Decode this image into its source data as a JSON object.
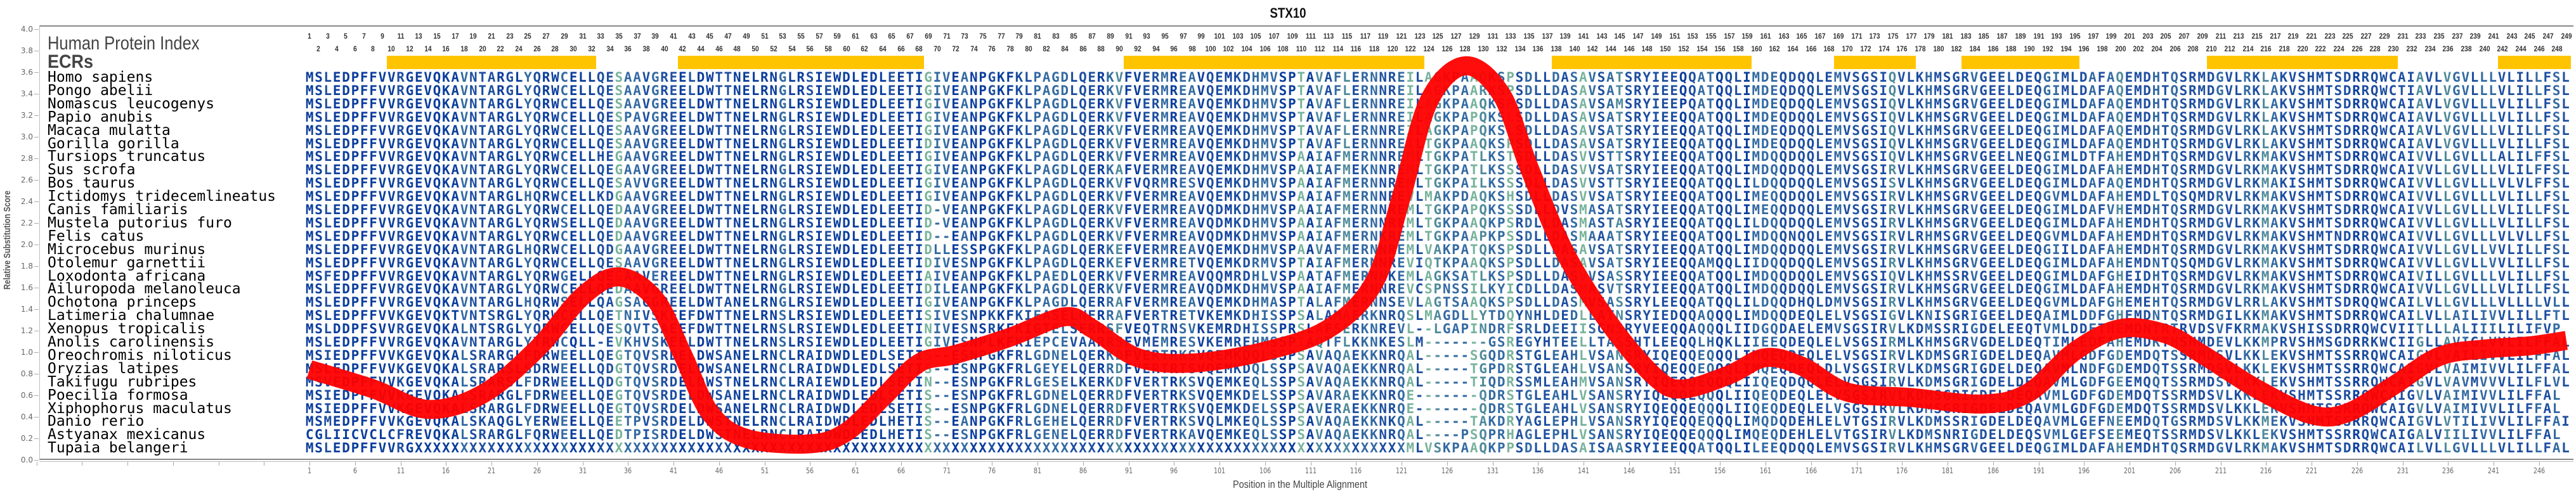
{
  "chart_data": {
    "type": "line",
    "title": "STX10",
    "xlabel": "Position in the Multiple Alignment",
    "ylabel": "Relative Substitution Score",
    "ylim": [
      0,
      4.0
    ],
    "xlim": [
      1,
      249
    ],
    "y_ticks": [
      "0.0",
      "0.2",
      "0.4",
      "0.6",
      "0.8",
      "1.0",
      "1.2",
      "1.4",
      "1.6",
      "1.8",
      "2.0",
      "2.2",
      "2.4",
      "2.6",
      "2.8",
      "3.0",
      "3.2",
      "3.4",
      "3.6",
      "3.8",
      "4.0"
    ],
    "x_ticks": [
      "1",
      "6",
      "11",
      "16",
      "21",
      "26",
      "31",
      "36",
      "41",
      "46",
      "51",
      "56",
      "61",
      "66",
      "71",
      "76",
      "81",
      "86",
      "91",
      "96",
      "101",
      "106",
      "111",
      "116",
      "121",
      "126",
      "131",
      "136",
      "141",
      "146",
      "151",
      "156",
      "161",
      "166",
      "171",
      "176",
      "181",
      "186",
      "191",
      "196",
      "201",
      "206",
      "211",
      "216",
      "221",
      "226",
      "231",
      "236",
      "241",
      "246"
    ],
    "num_positions": 249,
    "series": [
      {
        "name": "Relative Substitution Score",
        "color": "#ff0000",
        "points": [
          [
            1,
            0.84
          ],
          [
            8,
            0.66
          ],
          [
            14,
            0.47
          ],
          [
            20,
            0.61
          ],
          [
            26,
            1.03
          ],
          [
            31,
            1.52
          ],
          [
            35,
            1.7
          ],
          [
            39,
            1.49
          ],
          [
            42,
            0.98
          ],
          [
            45,
            0.44
          ],
          [
            49,
            0.2
          ],
          [
            56,
            0.15
          ],
          [
            60,
            0.26
          ],
          [
            64,
            0.58
          ],
          [
            68,
            0.9
          ],
          [
            72,
            0.98
          ],
          [
            78,
            1.14
          ],
          [
            84,
            1.33
          ],
          [
            87,
            1.22
          ],
          [
            92,
            0.95
          ],
          [
            98,
            0.9
          ],
          [
            106,
            1.01
          ],
          [
            113,
            1.22
          ],
          [
            118,
            1.65
          ],
          [
            121,
            2.45
          ],
          [
            124,
            3.33
          ],
          [
            128,
            3.66
          ],
          [
            132,
            3.39
          ],
          [
            135,
            2.72
          ],
          [
            139,
            1.92
          ],
          [
            144,
            1.25
          ],
          [
            149,
            0.76
          ],
          [
            152,
            0.66
          ],
          [
            157,
            0.79
          ],
          [
            161,
            0.95
          ],
          [
            165,
            0.87
          ],
          [
            170,
            0.63
          ],
          [
            177,
            0.58
          ],
          [
            185,
            0.52
          ],
          [
            190,
            0.63
          ],
          [
            195,
            1.01
          ],
          [
            200,
            1.22
          ],
          [
            205,
            1.17
          ],
          [
            209,
            0.98
          ],
          [
            215,
            0.66
          ],
          [
            221,
            0.42
          ],
          [
            225,
            0.44
          ],
          [
            230,
            0.69
          ],
          [
            235,
            0.96
          ],
          [
            240,
            1.03
          ],
          [
            245,
            1.06
          ],
          [
            249,
            1.11
          ]
        ]
      }
    ],
    "ecr_ranges": [
      [
        10,
        32
      ],
      [
        42,
        68
      ],
      [
        91,
        123
      ],
      [
        138,
        159
      ],
      [
        169,
        177
      ],
      [
        183,
        195
      ],
      [
        210,
        230
      ],
      [
        242,
        249
      ]
    ],
    "ecr_color": "#ffc400"
  },
  "panel": {
    "index_label": "Human Protein Index",
    "ecr_label": "ECRs"
  },
  "alignment": {
    "rows": [
      {
        "species": "Homo sapiens",
        "sequence": "MSLEDPFFVVRGEVQKAVNTARGLYQRWCELLQESAAVGREELDWTTNELRNGLRSIEWDLEDLEETIGIVEANPGKFKLPAGDLQERKVFVERMREAVQEMKDHMVSPTAVAFLERNNREILAGKPAAQKSPSDLLDASAVSATSRYIEEQQATQQLIMDEQDQQLEMVSGSIQVLKHMSGRVGEELDEQGIMLDAFAQEMDHTQSRMDGVLRKLAKVSHMTSDRRQWCAIAVLVGVLLLVLILLFSL"
      },
      {
        "species": "Pongo abelii",
        "sequence": "MSLEDPFFVVRGEVQKAVNTARGLYQRWCELLQESAAVGREELDWTTNELRNGLRSIEWDLEDLEETIGIVEANPGKFKLPAGDLQERKVFVERMREAVQEMKDHMVSPTAVAFLERNNREILAGKPAARKSPSDLLDASAVSATSRYIEEQQATQQLIMDEQDQQLEMVSGSIQVLKHMSGRVGEELDEQGIMLDAFAQEMDHTQSRMDGVLRKLAKVSHMTSDRRQWCTIAVLVGVLLLVLILLFSL"
      },
      {
        "species": "Nomascus leucogenys",
        "sequence": "MSLEDPFFVVRGEVQKAVNTARGLYQRWCELLQESAAVGREELDWTTNELRNGLRSIEWDLEDLEETIGIVEANPGKFKLPAGDLQERKVFVERMREAVQEMKDHMVSPTAVAFLERNNREILAGKPAAQKSPSDLLDASAVSAMSRYIEEPQATQQLIMDEQDQQLEMVSGSIQVLKHMSGRVGEELDEQGIMLDAFAQEMDHTQSRMDGVLRKLAKVSHMTSDRRQWCAIAVLVGVLLLVLILLFSL"
      },
      {
        "species": "Papio anubis",
        "sequence": "MSLEDPFFVVRGEVQKAVNTARGLYQRWCELLQESPAVGREELDWTTNELRNGLRSIEWDLEDLEETIGIVEANPGKFKLPAGDLQERKVFVERMREAVQEMKDHMVSPTAVAFLERNNREILAGKPAPQKSLSDLLDASAVSATSRYIEEQQATQQLIMDEQDQQLEMVSGSIQVLKHMSGRVGEELDEQGIMLDAFAQEMDHTQSRMDGVLRKLAKVSHMTSDRRQWCAIAVLVGVLLLVLILLFSL"
      },
      {
        "species": "Macaca mulatta",
        "sequence": "MSLEDPFFVVRGEVQKAVNTARGLYQRWCELLQESAAVGREELDWTTNELRNGLRSIEWDLEDLEETIGIVEANPGKFKLPAGDLQERKVFVERMREAVQEMKDHMVSPTAVAFLERNNREILAGKPAPQKSLSDLLDASAVSATSRYIEEQQATQQLIMDEQDQQLEMVSGSIQVLKHMSGRVGEELDEQGIMLDAFAQEMDHTQSRMDGVLRKLAKVSHMTSDRRQWCAIAVLVGVLLLVLILLFSL"
      },
      {
        "species": "Gorilla gorilla",
        "sequence": "MSLEDPFFVVRGEVQKAVNTARGLYQRWCELLQESAAVGREELDWTTNELRNGLRSIEWDLEDLEETIDIVEANPGKFKLPAGDLQERKVFVERMREAVQEMKDHMVSPTAVAFLERNNREILTGKPAAQKSPSDLLDASAVSATSRYIEEQQATQQLIMDEQDQQLEMVSGSIQVLKHMSGRVGEELDEQGIMLDAFAQEMDHTQSRMDGVLRKLAKVSHMTSDRRQWCAIAVLVGVLLLVLILLFSL"
      },
      {
        "species": "Tursiops truncatus",
        "sequence": "MSLEDPFFVVRGEVQKAVNTARGLYQRWCELLHEGAAVGREELDWTTNELRNGLRSIEWDLEDLEETIGIVEANPGKFKLPAGDLQERKVFVERMREAVQEMKDHMVSPAAIAFMERNNREMLTGKPATLKSTSDLLDASVVSTTSRYIEEQQATQQLIMDQQDQQLEMVSGSIQVLKHMSGRVGEELNEQGIMLDTFAHEMDHTQSRMDGVLRKMAKVSHMTSDRRQWCAIVVLLGVLLLALILFFSL"
      },
      {
        "species": "Sus scrofa",
        "sequence": "MSLEDPFFVVRGEVQKAVNTARGLYQRWCELLQEGAAVGREELDWTTNELRNGLRSIEWDLEDLEETIGIVEANPGKFKLPAGDLQERKAFVERMREAVQEMKDHMVSPAAIAFMEKNNREMLTGKPATLKSSSDLLDASVVSATSRYIEEQQATQQLIMDQQDQQLEMVSGSIRVLKHMSGRVGEELDEQGIMLDAFAHEMDHTQSRMDGVLRKMAKVSHMTSDRRQWCAIVVLLGVLLLVLILFFSL"
      },
      {
        "species": "Bos taurus",
        "sequence": "MSLEDPFFVVRGEVQKAVNTARGLYQRWCELLQESAVVGREELDWTTNELRNGLRSIEWDLEDLEETIGIVEANPGKFKLPAGDLQERKVFVQRMRESVQEMKDHMVSPAAIAFMERNNREMLTGKPAILKSSSDLLDASVVSTTSRYIEEQQATQQLILDQQDQQLEMVSGSISVLKHMSGRVGEELDEQGIMLDAFAQEMDHTQSRMDGVLRKMAKISHMTSDRRQWCAIVVLLGVLLLVLVLFFSL"
      },
      {
        "species": "Ictidomys tridecemlineatus",
        "sequence": "MSLEDPFFVVRGEVQKAVNTARGLHQRWCELLKDGAAVGREELDWTTNELRNGLRSIEWDLEDLEETIGIVEANPGKFKLPAGDLQERKVFVERMREAVQEMKDHMVSPAAIAFMERNNREVLMAKPDAQKSHSDLLDASVVSATSRYIEEQQATQQLIMEQQDQQLEMVSGSIRVLKHMSGRVGEELDEQGVMLDAFAHEMDLTQSQMDRVLRKMAKVSHMTSDRRQWCAIVVLLGVLLLVLILLFSL"
      },
      {
        "species": "Canis familiaris",
        "sequence": "MSLEDPFFVVRGEVQKAVNTARGLYQRWCELLQEDAAVGREELDWTTNELRNGLRSIEWDLEDLEETID-VEANPGKFKLPAGDLQERKVFVERMREAVQDMKDHMVSPAAIAFMERNNREMLTGKPAPQKSSSDLLDVSMASATSRYIEEQQATQQLIMEQQDQQLEMVSGSIRVLKHMSGRVGEELDEQGIMLDAFVHEMDHTQSRMDGVLRKMAKVSHMTSDRRQWCAIVVLLGVLLLVLILLFSL"
      },
      {
        "species": "Mustela putorius furo",
        "sequence": "MSLEDPFFVVRGEVQKAVNTARGLYQRWSELLQEDAAVGREELDWTTNELRNGLRSIEWDLEDLEETID-VEANPGKFKLPAGDLQERKVFVERMREAVQDMKDHMVSPAAIAFMERNNREMLTGKPAAQKPSRDLLDASMASTASRYIEEQQATQQLILDQQDQQLEMVSGSIRVLKHMSGRVGEELDEQGIMLDAFAHEMDHTQSRMDGVLRKMAKVSHMTSDRRQWCAIVVLLGVLLLVLILLFSL"
      },
      {
        "species": "Felis catus",
        "sequence": "MSLEDPFFVVRGEVQKAVNTARGLYQRWCELLQEDAAVGREELDWTTNELRNGLRSIEWDLEDLEETID--EANPGKFKLPAGDLQERKVFVERMREAVQDMKDHMVSPAAIAFMERNKREMLTGKPAAPKPSSDLLDASMAAATSRYIEEQQATQQLIMDQQNQQLEMVSGSIRVLRHMSGRVGEELDEQGVMLDAFAHEMDHTQSRMDGVLRKMAKVSHMTNDRRQWCAIVVLLGVLLLVLVLLFSL"
      },
      {
        "species": "Microcebus murinus",
        "sequence": "MSLEDPFFVVRGEVQKAVNTARGLHQRWCELLQDGAAVGREELDWTTNELRNGLRSIEWDLEDLEETIDLLESSPGKFKLPAGDLQERKEFVERMREAVQEMKDHMVSPAAVAFMERNNREMLVAKPATQKSPSDLLDASAVSATSRYIEEQQATQQLIMDQQDQQLEMVSGSIRVLKHMSGRVGEELDEQGIILDAFAHEMDHTQSRMDGVLRKMAKVSHMTSDRRQWCAIVVLLGVLLVVLILLFSL"
      },
      {
        "species": "Otolemur garnettii",
        "sequence": "MSLEDPFFVVRGEVQKAVNTARGLYQRWCELLQESAAVGREELDWTTNELRNGLRSIEWDLEDLEETIDIVESNPGKFKLPAGDLQERKEFVERMRETVQEMKDRMVSPTAIAFMERNNREVIQTKPAAQKSPSDLLDASAVSATSRYIEEQQAMQQLIIDQQDQQLEMVSGSIRVLKHMSGRVGEELDEQGIMLDAFAHEMDNTQSQMDGVLRKMAKVSHMTSDRRQWCAIVVLLGVLLVVLILLFSL"
      },
      {
        "species": "Loxodonta africana",
        "sequence": "MSFEDPFFVVRGEVQKAVNTARGLYQRWGELLQEGAAVEREELDWTTNELRNGLRSIEWDLEDLEETIAIVEANPGKFKLPAEDLQERKVFVERMREAVQQMRDHLVSPAATAFMERNNKEMLAGKSATLKSPSDLLDASVVSASSRYIEEQQATQQLIMDQQDQQLEMVSGSIQVLKHMSSRVGEELDEQGIMLDAFGHEIDHTQSRMDGVLRKMAKVSHMTSDRRQWCAIVILLGVLLLVLILLFSL"
      },
      {
        "species": "Ailuropoda melanoleuca",
        "sequence": "MSLEDPFFVVRGEVQKAVNTARGLYQRWCELLQEDAAVGREELDWTTNELRNGLRSIEWDLEDLEETIDILEANPGKFKLPAGDLQERKVFVERMREAVQDMKDHMVSPAAIAFMERNNREVCSPNSSILKYICDLLDASMASVTSRYIEEQQATQQLIMDQQDQQLEMVSGSIRVLKHMSGRVGEELDEQGIMLDAFAHEMDHTQSRMDGVLRKMAKVSHMTSDRRQWCAIVVLLGVLLLVLILLFSL"
      },
      {
        "species": "Ochotona princeps",
        "sequence": "MSLEDPFFVVRGEVQKAVNTARGLHQRWSELLQAGSAGGREELDWTANELRNGLRSIEWDLEDLEETIGIVEANPGKFKLPAGDLQERRAFVERMREAVQEMKDHMASPTALAFMERNNSEVLAGTSAAQKSPSDLLDASMVSASSRYLEEQQATQQLILDQQDHQLDMVSGSIRVLKHMSGRVGEELDEQGVMLDAFGHEMEHTQSRMDGVLRRLAKVSHMTSDRQQWCAILVLLGVLLLVLLLLVLL"
      },
      {
        "species": "Latimeria chalumnae",
        "sequence": "MSLEDPFFVVKGEVQKTVNTSRGLYQRWCELLQETNIVSKEEFDWTTNELRNSLRSIEWDLEDLEETISIVESNPKKFKIEASELNERRAFVERTRETVKEMKDHISSPSALAMAERKNRQSLMAGDLLYTDQYNHLDEDLLATNSRYIEDQQAQQQLIMDQQDEQLELVSGSIGVLKNISGRIGEELDEQAIMLDDFGHEMDNTQSRMDGILKKMAKVSHMTSDRRQWCAILVLLAILIVVLILLFTL"
      },
      {
        "species": "Xenopus tropicalis",
        "sequence": "MSLDDPFSVVRGEVQKALNTSRGLYQRWCELLQESQVTSAEEFDWTTNELRNSLRSIEWDLEDLEETINIVESNSRKFKIGTELSERRSFVEQTRNSVKEMRDHISSPRSLAFSERKNREVL--LGAPINDRFSRLDEEIISGNSRYVEEQQAQQQLIIDGQDAELEMVSGSIRVLKDMSSRIGDELEEQTVMLDDFTHEMDNTRTRVDSVFKRMAKVSHISSDRRQWCVIITLLLALIIILILIFVP"
      },
      {
        "species": "Anolis carolinensis",
        "sequence": "MSLEDPFFVVRGEVQKAVNTARGLYTRWCQLL-EVKHVSKEELDWTTNELRNSLRSIEWDLEDLEETIGIVESNPLKFKIEPCEVAARRSFVMEMRESVKEMREHMSSPTAQTFLKKNKESLM-------GSREGYHTEELLTASSHTLEEQQLHQKLIIEEQDEQLELVSGSIRMLKHMSGRVGDELDEQTIMLEDFAHEMDKTHSHMDEVLKKMPRVSHMSGDRRKWCIIGLLAVIGLVVLILFFAL"
      },
      {
        "species": "Oreochromis niloticus",
        "sequence": "MSIEDPFFVVKGEVQKALSRARGLFDRWEELLQEGTQVSRDELDWSANELRNCLRAIDWDLEDLSETIS--ESNPGKFRLGDNELQERKDFVERTRKSVQEMKDQLSSPSAVAQAEKKNRQAL-----SGQDRSTGLEAHLVSANSRYIQEQQEQQQLIMQEQDEQLELVSGSIRVLKDMSGRIGDELDEQAVMLGDFGDEMDQTSSRMDSVLKKLEKVSHMTSSRRQWCAIGVLVAILIVVLILFFAL"
      },
      {
        "species": "Oryzias latipes",
        "sequence": "MSLEDPFFVVKGEVQKALSRARSLSDRWEELLQDGTQVSRDELDWSANELRNCLRAIDWDLEDLSETIS--ESNPGKFRLGEYELQERRDFVERTRTSVQEMKDQLSSPSAVAQAEKKNRQAL-----TGPDRSTGLEAHLVSANSRYIQEQQEQQQLIMQEQDEQLDLVSGSIRVLKDMSGRIGDELDEQAVMLNDFGDEMDQTSSRMDSVLKKLEKVSHMTSSRRQWCAIGVLVAIMIVVLILFFAL"
      },
      {
        "species": "Takifugu rubripes",
        "sequence": "MSVEDPFFVVKGEVQKALSRARSLFDRWEELLQDGTQVSRDELDWSTNELRNCLRAIEWDLEDLSETIN--ESNPGKFRLGESELKERKDFVERTRKSVQEMKEQLSSPSAVAQAEKKNRQAL-----TIQDRSSMLEAHMVSANSRYIQEQQEQQQLIIQEQDQQLELVSGSIRVLKDMSGRIGDELDEQAVMLGDFGEEMQQTSSRMDSVLKKLEKVSHMTSSRRQWCAIGVLVAVMVVVLILFLVL"
      },
      {
        "species": "Poecilia formosa",
        "sequence": "MSIEDPFFVVKGEVQKALSRARGLFDRWEELLQEGTQVSRDELDWSANELRNCLRAIDWDLEDLSETIS--ESNPGKFRLGDNELQERRDFVERTRKSVQEMKDELSSPSAVARAEKKNRQE-------QDRSTGLEAHLVSANSRYIQEQQEQQQLIIQEQDEQLELVSGSIRVLKDMSGRIGDELDEQAVMLGDFGDEMDQTSSRMDSVLKKLEKVSHMTSSRRQWCAIGVLVAIMIVVLILFFAL"
      },
      {
        "species": "Xiphophorus maculatus",
        "sequence": "MSIEDPFFVVKGEVQKALSRARGLFDRWEELLQEGTQVSRDELDWSANELRNCLRAIDWDLEDLSETIS--ESNPGKFRLGDNELQERRDFVERTRKSVQEMKDELSSPSAVERAEKKNRQE-------QDRSTGLEAHLVSANSRYIQEQQEQQQLIIQEQDEQLELVSGSIRVLKDMSGRIGDELDEQAVMLGDFGDEMDQTSSRMDSVLKKLEKVSHMTSSRRQWCAIGVLVAIMIVVLILFFAL"
      },
      {
        "species": "Danio rerio",
        "sequence": "MSMEDPFFVVKGEVQKALSKAQGLYERWEELLQEETPVSRDELDWSTNELRNCLRAIDWDLEDLHETIS--EANPGKFRLGEHELQERRDFVERTRKSVQLMKEQLSSPSAVAQAEKKNKQAL-----TAKDRYAGLEPHLVSANSRYIQEQQEQQQLIMQDQDEHLELVTGSIRVLKDMSSRIGDELDEQAVMLGEFNEEMDQTGSRMDSVLKKMEKVSHMTSSRRQWCAIGVLVTILIVVLILFFAI"
      },
      {
        "species": "Astyanax mexicanus",
        "sequence": "CGLIICVCLCFREVQKALSRARGLFQRWEELLQEDTPISRDELDWSTNELRNCLRAIDWDLEDLHETIS--ESNPGKFRLGENELQERRDFVERTRKAVQEMKEQLSSPSAVAQAEKKNRQAL----PSQPRHAGLEPHLVSANSRYIQEQQEQQQLIMQEQDEHLELVTGSIRVLKDMSNRIGDELDEQSVMLGEFSEEMEQTSSRMDSVLKKLEKVSHMTSSRRQWCAIGALVIILIVVLILFFAL"
      },
      {
        "species": "Tupaia belangeri",
        "sequence": "MSLEDPFFVVRGXXXXXXXXXXXXXXXXXXXXXXXXXXXXXXXXXXXXXXXXXXXXXXXXXXXXXXXXXXXXXXXXXXXXXXXXXXXXXXXXXXXXXXXXXXXXXXXXXXXXXXXXXXXXXMLVSKPAAQKPPSDLLDASAISAASRYIEEQQATQQLILEEQDQQLEMVSGSIRVLKHMSGRVGEELDEQGIMLDAFAHEMDHTQSRMDGVLRKMAKVSHMTSDRRQWCAILVLLGVLLLVLILLFAL"
      }
    ]
  }
}
